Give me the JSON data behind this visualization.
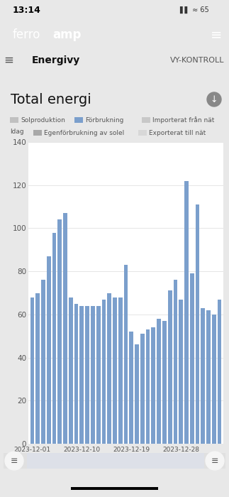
{
  "title": "Total energi",
  "bar_color": "#7B9FCC",
  "background_color": "#ffffff",
  "outer_background": "#e8e8e8",
  "card_background": "#ffffff",
  "ylim": [
    0,
    140
  ],
  "yticks": [
    0,
    20,
    40,
    60,
    80,
    100,
    120,
    140
  ],
  "xtick_labels": [
    "2023-12-01",
    "2023-12-10",
    "2023-12-19",
    "2023-12-28"
  ],
  "xtick_positions": [
    0,
    9,
    18,
    27
  ],
  "values": [
    68,
    70,
    76,
    87,
    98,
    104,
    107,
    68,
    65,
    64,
    64,
    64,
    64,
    67,
    70,
    68,
    68,
    83,
    52,
    46,
    51,
    53,
    54,
    58,
    57,
    71,
    76,
    67,
    122,
    79,
    111,
    63,
    62,
    60,
    67
  ],
  "legend_items": [
    {
      "label": "Solproduktion",
      "color": "#c0c0c0"
    },
    {
      "label": "Förbrukning",
      "color": "#7B9FCC"
    },
    {
      "label": "Importerat från nät",
      "color": "#c8c8c8"
    },
    {
      "label": "Egenförbrukning av solel",
      "color": "#a8a8a8"
    },
    {
      "label": "Exporterat till nät",
      "color": "#d8d8d8"
    }
  ],
  "idag_label": "Idag",
  "header_bg": "#111111",
  "nav_text_left": "Energivy",
  "nav_text_right": "VY-KONTROLL",
  "status_time": "13:14"
}
